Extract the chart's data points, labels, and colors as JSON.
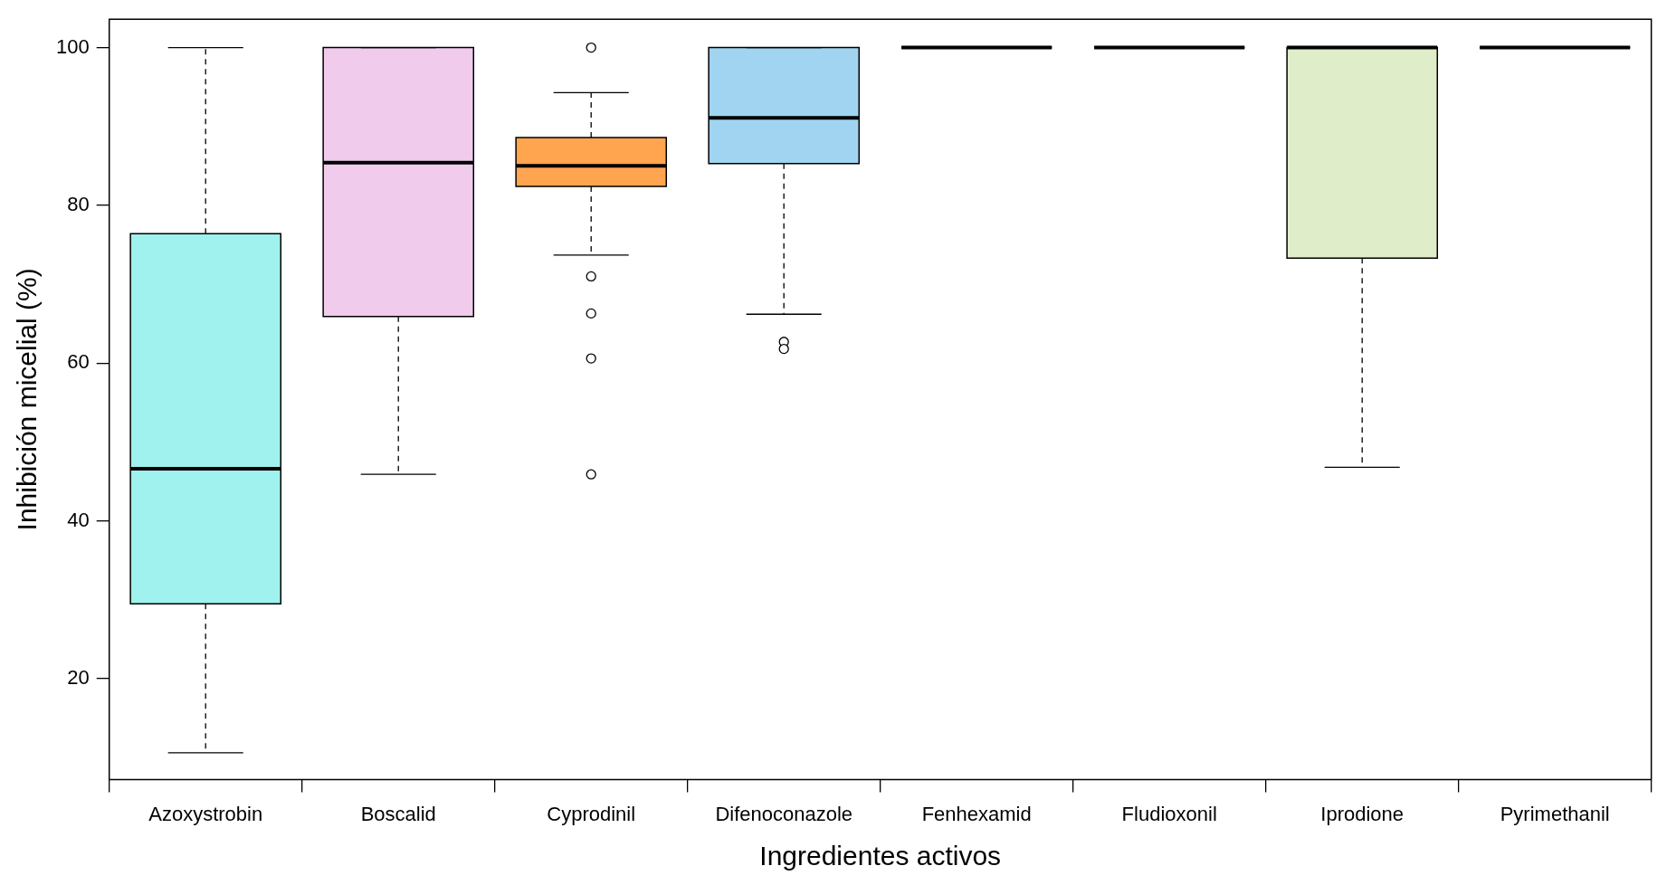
{
  "chart_data": {
    "type": "box",
    "xlabel": "Ingredientes activos",
    "ylabel": "Inhibición micelial (%)",
    "categories": [
      "Azoxystrobin",
      "Boscalid",
      "Cyprodinil",
      "Difenoconazole",
      "Fenhexamid",
      "Fludioxonil",
      "Iprodione",
      "Pyrimethanil"
    ],
    "colors": [
      "#a0f2ee",
      "#f0cbec",
      "#ffa54f",
      "#a0d4f0",
      "#000000",
      "#000000",
      "#dfedc8",
      "#000000"
    ],
    "boxes": [
      {
        "low": 10.6,
        "q1": 29.5,
        "median": 46.6,
        "q3": 76.4,
        "high": 100
      },
      {
        "low": 45.9,
        "q1": 65.9,
        "median": 85.4,
        "q3": 100,
        "high": 100
      },
      {
        "low": 73.7,
        "q1": 82.4,
        "median": 85.0,
        "q3": 88.6,
        "high": 94.3,
        "outliers": [
          100,
          71.0,
          66.3,
          60.6,
          45.9
        ]
      },
      {
        "low": 66.2,
        "q1": 85.3,
        "median": 91.1,
        "q3": 100,
        "high": 100,
        "outliers": [
          62.7,
          61.8
        ]
      },
      {
        "low": 100,
        "q1": 100,
        "median": 100,
        "q3": 100,
        "high": 100
      },
      {
        "low": 100,
        "q1": 100,
        "median": 100,
        "q3": 100,
        "high": 100
      },
      {
        "low": 46.8,
        "q1": 73.3,
        "median": 100,
        "q3": 100,
        "high": 100
      },
      {
        "low": 100,
        "q1": 100,
        "median": 100,
        "q3": 100,
        "high": 100
      }
    ],
    "ylim": [
      7.2,
      103.6
    ],
    "yticks": [
      20,
      40,
      60,
      80,
      100
    ],
    "grid": false,
    "legend": false
  }
}
